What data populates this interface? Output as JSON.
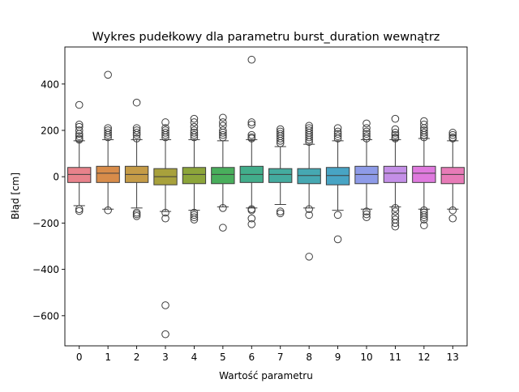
{
  "chart_data": {
    "type": "box",
    "title": "Wykres pudełkowy dla parametru burst_duration wewnątrz",
    "xlabel": "Wartość parametru",
    "ylabel": "Błąd [cm]",
    "ylim": [
      -730,
      560
    ],
    "yticks": [
      -600,
      -400,
      -200,
      0,
      200,
      400
    ],
    "ytick_labels": [
      "−600",
      "−400",
      "−200",
      "0",
      "200",
      "400"
    ],
    "grid": false,
    "legend": "none",
    "categories": [
      "0",
      "1",
      "2",
      "3",
      "4",
      "5",
      "6",
      "7",
      "8",
      "9",
      "10",
      "11",
      "12",
      "13"
    ],
    "colors": [
      "#e8828b",
      "#d88c4a",
      "#c59b47",
      "#a8a13c",
      "#8ca53a",
      "#49ae5c",
      "#42ad8b",
      "#44ab9f",
      "#46a8b2",
      "#48a4c4",
      "#8e9be8",
      "#c48fe7",
      "#df7ade",
      "#e77bb7"
    ],
    "boxes": [
      {
        "q1": -25,
        "median": 10,
        "q3": 40,
        "whisker_low": -125,
        "whisker_high": 155,
        "outliers": [
          310,
          225,
          215,
          200,
          185,
          175,
          165,
          160,
          -140,
          -148
        ]
      },
      {
        "q1": -25,
        "median": 15,
        "q3": 45,
        "whisker_low": -140,
        "whisker_high": 160,
        "outliers": [
          440,
          210,
          200,
          190,
          180,
          170,
          -145
        ]
      },
      {
        "q1": -25,
        "median": 10,
        "q3": 45,
        "whisker_low": -135,
        "whisker_high": 160,
        "outliers": [
          320,
          210,
          200,
          190,
          180,
          165,
          -155,
          -162,
          -170
        ]
      },
      {
        "q1": -35,
        "median": 0,
        "q3": 35,
        "whisker_low": -150,
        "whisker_high": 160,
        "outliers": [
          235,
          210,
          200,
          190,
          180,
          170,
          -155,
          -180,
          -555,
          -680
        ]
      },
      {
        "q1": -30,
        "median": 10,
        "q3": 40,
        "whisker_low": -145,
        "whisker_high": 160,
        "outliers": [
          250,
          235,
          215,
          200,
          190,
          180,
          170,
          -155,
          -165,
          -175,
          -185
        ]
      },
      {
        "q1": -30,
        "median": 10,
        "q3": 40,
        "whisker_low": -130,
        "whisker_high": 155,
        "outliers": [
          255,
          235,
          220,
          200,
          190,
          180,
          170,
          -135,
          -220
        ]
      },
      {
        "q1": -25,
        "median": 10,
        "q3": 45,
        "whisker_low": -135,
        "whisker_high": 160,
        "outliers": [
          505,
          235,
          225,
          180,
          170,
          165,
          -140,
          -145,
          -180,
          -205
        ]
      },
      {
        "q1": -25,
        "median": 10,
        "q3": 35,
        "whisker_low": -120,
        "whisker_high": 130,
        "outliers": [
          205,
          195,
          185,
          175,
          165,
          155,
          145,
          -150,
          -158
        ]
      },
      {
        "q1": -30,
        "median": 5,
        "q3": 35,
        "whisker_low": -135,
        "whisker_high": 140,
        "outliers": [
          220,
          210,
          200,
          190,
          180,
          170,
          160,
          150,
          -140,
          -165,
          -345
        ]
      },
      {
        "q1": -35,
        "median": 5,
        "q3": 40,
        "whisker_low": -145,
        "whisker_high": 155,
        "outliers": [
          210,
          195,
          185,
          175,
          165,
          -165,
          -270
        ]
      },
      {
        "q1": -30,
        "median": 10,
        "q3": 45,
        "whisker_low": -140,
        "whisker_high": 160,
        "outliers": [
          230,
          210,
          195,
          185,
          175,
          165,
          -150,
          -162,
          -175
        ]
      },
      {
        "q1": -25,
        "median": 15,
        "q3": 45,
        "whisker_low": -130,
        "whisker_high": 160,
        "outliers": [
          250,
          205,
          190,
          180,
          170,
          165,
          -135,
          -150,
          -170,
          -185,
          -200,
          -215
        ]
      },
      {
        "q1": -25,
        "median": 15,
        "q3": 45,
        "whisker_low": -140,
        "whisker_high": 165,
        "outliers": [
          240,
          225,
          210,
          200,
          190,
          180,
          170,
          -145,
          -155,
          -165,
          -175,
          -185,
          -210
        ]
      },
      {
        "q1": -30,
        "median": 10,
        "q3": 40,
        "whisker_low": -140,
        "whisker_high": 155,
        "outliers": [
          190,
          180,
          170,
          165,
          -145,
          -180
        ]
      }
    ]
  }
}
